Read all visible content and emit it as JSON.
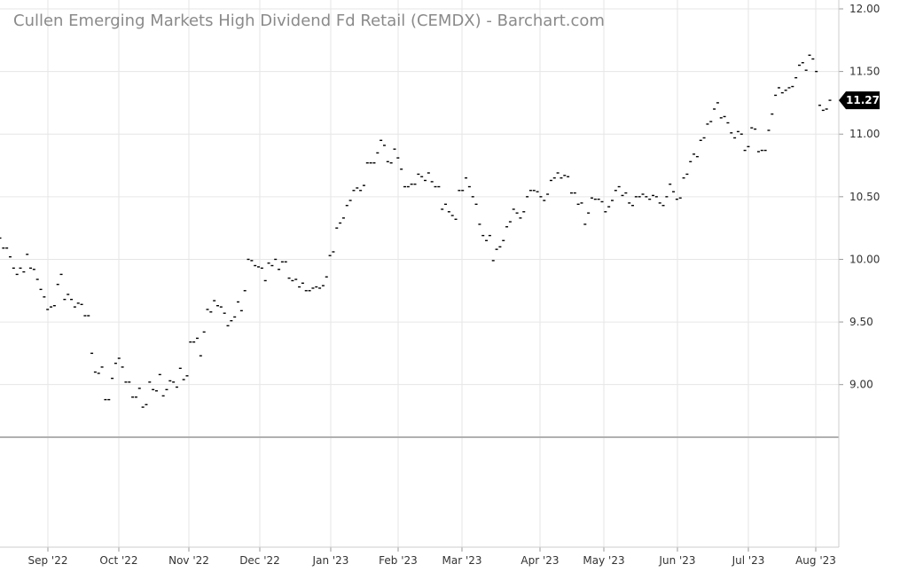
{
  "chart_data": {
    "type": "scatter",
    "title": "Cullen Emerging Markets High Dividend Fd Retail (CEMDX) - Barchart.com",
    "ylim": [
      8.58,
      12.0
    ],
    "grid": true,
    "y_ticks": [
      "12.00",
      "11.50",
      "11.00",
      "10.50",
      "10.00",
      "9.50",
      "9.00"
    ],
    "x_ticks": [
      "Sep '22",
      "Oct '22",
      "Nov '22",
      "Dec '22",
      "Jan '23",
      "Feb '23",
      "Mar '23",
      "Apr '23",
      "May '23",
      "Jun '23",
      "Jul '23",
      "Aug '23"
    ],
    "last_price_label": "11.27",
    "last_price": 11.27,
    "series": [
      {
        "values": [
          10.17,
          10.09,
          10.09,
          10.02,
          9.93,
          9.88,
          9.93,
          9.9,
          10.04,
          9.93,
          9.92,
          9.84,
          9.76,
          9.7,
          9.6,
          9.62,
          9.63,
          9.8,
          9.88,
          9.68,
          9.72,
          9.68,
          9.62,
          9.65,
          9.64,
          9.55,
          9.55,
          9.25,
          9.1,
          9.09,
          9.14,
          8.88,
          8.88,
          9.05,
          9.17,
          9.21,
          9.14,
          9.02,
          9.02,
          8.9,
          8.9,
          8.97,
          8.82,
          8.84,
          9.02,
          8.96,
          8.95,
          9.08,
          8.91,
          8.96,
          9.03,
          9.02,
          8.98,
          9.13,
          9.04,
          9.07,
          9.34,
          9.34,
          9.37,
          9.23,
          9.42,
          9.6,
          9.58,
          9.67,
          9.63,
          9.62,
          9.57,
          9.47,
          9.51,
          9.54,
          9.66,
          9.59,
          9.75,
          10.0,
          9.99,
          9.95,
          9.94,
          9.93,
          9.83,
          9.97,
          9.95,
          10.0,
          9.92,
          9.98,
          9.98,
          9.85,
          9.83,
          9.84,
          9.78,
          9.81,
          9.75,
          9.75,
          9.77,
          9.78,
          9.77,
          9.79,
          9.86,
          10.03,
          10.06,
          10.25,
          10.29,
          10.33,
          10.43,
          10.47,
          10.55,
          10.57,
          10.55,
          10.59,
          10.77,
          10.77,
          10.77,
          10.85,
          10.95,
          10.91,
          10.78,
          10.77,
          10.88,
          10.81,
          10.72,
          10.58,
          10.58,
          10.6,
          10.6,
          10.68,
          10.66,
          10.63,
          10.69,
          10.62,
          10.58,
          10.58,
          10.4,
          10.44,
          10.38,
          10.35,
          10.32,
          10.55,
          10.55,
          10.65,
          10.58,
          10.5,
          10.44,
          10.28,
          10.19,
          10.15,
          10.19,
          9.99,
          10.08,
          10.1,
          10.15,
          10.26,
          10.3,
          10.4,
          10.37,
          10.33,
          10.38,
          10.5,
          10.55,
          10.55,
          10.54,
          10.5,
          10.47,
          10.52,
          10.63,
          10.65,
          10.69,
          10.65,
          10.67,
          10.66,
          10.53,
          10.53,
          10.44,
          10.45,
          10.28,
          10.37,
          10.49,
          10.48,
          10.48,
          10.46,
          10.38,
          10.42,
          10.47,
          10.55,
          10.58,
          10.51,
          10.53,
          10.45,
          10.43,
          10.5,
          10.5,
          10.52,
          10.5,
          10.48,
          10.51,
          10.5,
          10.45,
          10.43,
          10.5,
          10.6,
          10.54,
          10.48,
          10.49,
          10.65,
          10.68,
          10.78,
          10.84,
          10.82,
          10.95,
          10.97,
          11.08,
          11.1,
          11.2,
          11.25,
          11.13,
          11.14,
          11.09,
          11.01,
          10.97,
          11.02,
          11.0,
          10.87,
          10.9,
          11.05,
          11.04,
          10.86,
          10.87,
          10.87,
          11.03,
          11.16,
          11.31,
          11.37,
          11.33,
          11.35,
          11.37,
          11.38,
          11.45,
          11.55,
          11.57,
          11.51,
          11.63,
          11.6,
          11.5,
          11.23,
          11.19,
          11.2,
          11.27
        ]
      }
    ]
  }
}
